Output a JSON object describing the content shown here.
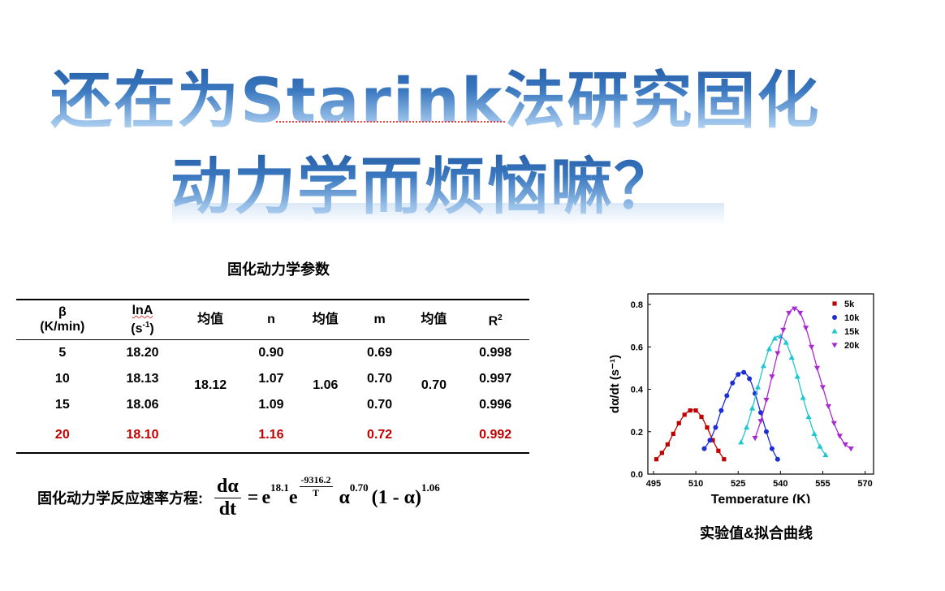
{
  "headline": {
    "line1": "还在为Starink法研究固化",
    "line2": "动力学而烦恼嘛？"
  },
  "table": {
    "title": "固化动力学参数",
    "headers": {
      "beta": "β",
      "beta_unit": "(K/min)",
      "lnA": "lnA",
      "lnA_unit_base": "(s",
      "lnA_unit_exp": "-1",
      "lnA_unit_close": ")",
      "mean1": "均值",
      "n": "n",
      "mean2": "均值",
      "m": "m",
      "mean3": "均值",
      "r2_base": "R",
      "r2_exp": "2"
    },
    "rows": [
      {
        "beta": "5",
        "lnA": "18.20",
        "n": "0.90",
        "m": "0.69",
        "r2": "0.998"
      },
      {
        "beta": "10",
        "lnA": "18.13",
        "n": "1.07",
        "m": "0.70",
        "r2": "0.997"
      },
      {
        "beta": "15",
        "lnA": "18.06",
        "n": "1.09",
        "m": "0.70",
        "r2": "0.996"
      },
      {
        "beta": "20",
        "lnA": "18.10",
        "n": "1.16",
        "m": "0.72",
        "r2": "0.992"
      }
    ],
    "means": {
      "lnA": "18.12",
      "n": "1.06",
      "m": "0.70"
    },
    "highlight_color": "#c00000"
  },
  "equation": {
    "label": "固化动力学反应速率方程:",
    "lhs_num": "dα",
    "lhs_den": "dt",
    "equals": "=",
    "e1": "e",
    "e1_exp": "18.1",
    "e2": "e",
    "e2_exp_num": "-9316.2",
    "e2_exp_den": "T",
    "alpha": "α",
    "alpha_exp": "0.70",
    "paren": "(1 - α)",
    "paren_exp": "1.06"
  },
  "chart_data": {
    "type": "scatter",
    "xlabel": "Temperature (K)",
    "ylabel": "dα/dt (s⁻¹)",
    "xlim": [
      493,
      573
    ],
    "ylim": [
      0.0,
      0.85
    ],
    "xticks": [
      "495",
      "510",
      "525",
      "540",
      "555",
      "570"
    ],
    "yticks": [
      "0.0",
      "0.2",
      "0.4",
      "0.6",
      "0.8"
    ],
    "legend_position": "top-right",
    "series": [
      {
        "name": "5k",
        "color": "#c00000",
        "marker": "square",
        "x": [
          496,
          498,
          500,
          502,
          504,
          506,
          508,
          510,
          512,
          514,
          516,
          518,
          520
        ],
        "y": [
          0.07,
          0.1,
          0.14,
          0.19,
          0.24,
          0.28,
          0.3,
          0.3,
          0.27,
          0.22,
          0.16,
          0.11,
          0.07
        ]
      },
      {
        "name": "10k",
        "color": "#1c2fd4",
        "marker": "circle",
        "x": [
          513,
          515,
          517,
          519,
          521,
          523,
          525,
          527,
          529,
          531,
          533,
          535,
          537,
          539
        ],
        "y": [
          0.12,
          0.16,
          0.22,
          0.3,
          0.37,
          0.43,
          0.47,
          0.48,
          0.45,
          0.38,
          0.29,
          0.2,
          0.12,
          0.07
        ]
      },
      {
        "name": "15k",
        "color": "#1cc7d4",
        "marker": "triangle-up",
        "x": [
          526,
          528,
          530,
          532,
          534,
          536,
          538,
          540,
          542,
          544,
          546,
          548,
          550,
          552,
          554,
          556
        ],
        "y": [
          0.15,
          0.22,
          0.31,
          0.41,
          0.51,
          0.59,
          0.64,
          0.65,
          0.62,
          0.55,
          0.46,
          0.36,
          0.27,
          0.19,
          0.13,
          0.09
        ]
      },
      {
        "name": "20k",
        "color": "#a82ad0",
        "marker": "triangle-down",
        "x": [
          531,
          533,
          535,
          537,
          539,
          541,
          543,
          545,
          547,
          549,
          551,
          553,
          555,
          557,
          559,
          561,
          563,
          565
        ],
        "y": [
          0.17,
          0.25,
          0.35,
          0.46,
          0.57,
          0.68,
          0.76,
          0.78,
          0.76,
          0.69,
          0.6,
          0.5,
          0.41,
          0.32,
          0.24,
          0.18,
          0.14,
          0.12
        ]
      }
    ],
    "caption": "实验值&拟合曲线"
  }
}
